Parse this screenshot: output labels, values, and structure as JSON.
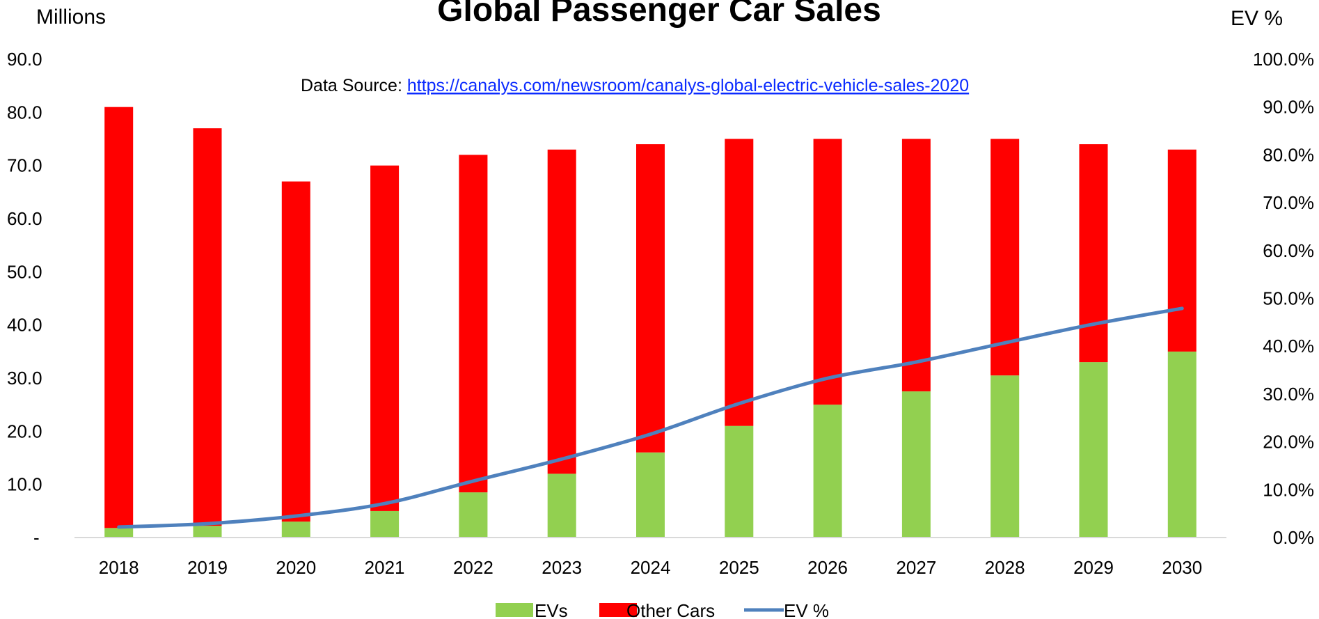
{
  "chart_data": {
    "type": "bar",
    "stacked": true,
    "title": "Global Passenger Car Sales",
    "source_label": "Data Source: ",
    "source_link": "https://canalys.com/newsroom/canalys-global-electric-vehicle-sales-2020",
    "ylabel_left": "Millions",
    "ylabel_right": "EV %",
    "categories": [
      "2018",
      "2019",
      "2020",
      "2021",
      "2022",
      "2023",
      "2024",
      "2025",
      "2026",
      "2027",
      "2028",
      "2029",
      "2030"
    ],
    "series": [
      {
        "name": "EVs",
        "kind": "bar",
        "axis": "left",
        "color": "#92d050",
        "values": [
          1.8,
          2.2,
          3.0,
          5.0,
          8.5,
          12.0,
          16.0,
          21.0,
          25.0,
          27.5,
          30.5,
          33.0,
          35.0
        ]
      },
      {
        "name": "Other Cars",
        "kind": "bar",
        "axis": "left",
        "color": "#ff0000",
        "values": [
          79.2,
          74.8,
          64.0,
          65.0,
          63.5,
          61.0,
          58.0,
          54.0,
          50.0,
          47.5,
          44.5,
          41.0,
          38.0
        ]
      },
      {
        "name": "EV %",
        "kind": "line",
        "axis": "right",
        "color": "#4f81bd",
        "values": [
          2.2,
          2.9,
          4.5,
          7.1,
          11.8,
          16.4,
          21.6,
          28.0,
          33.3,
          36.7,
          40.7,
          44.6,
          47.9
        ]
      }
    ],
    "ylim_left": [
      0,
      90
    ],
    "ylim_right": [
      0,
      100
    ],
    "yticks_left": [
      "-",
      "10.0",
      "20.0",
      "30.0",
      "40.0",
      "50.0",
      "60.0",
      "70.0",
      "80.0",
      "90.0"
    ],
    "yticks_right": [
      "0.0%",
      "10.0%",
      "20.0%",
      "30.0%",
      "40.0%",
      "50.0%",
      "60.0%",
      "70.0%",
      "80.0%",
      "90.0%",
      "100.0%"
    ],
    "grid": false,
    "legend_position": "bottom"
  }
}
